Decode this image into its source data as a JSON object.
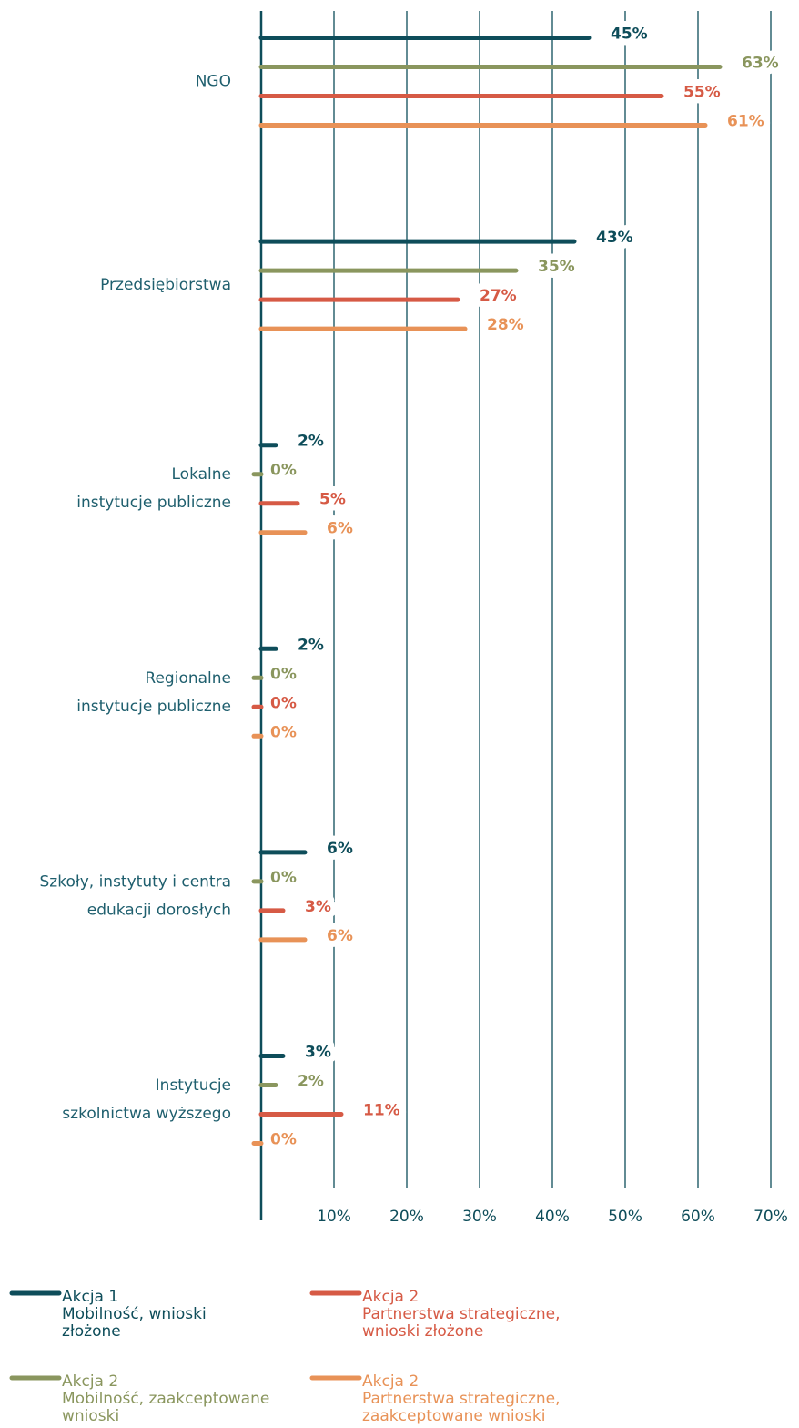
{
  "chart_data": {
    "type": "bar",
    "orientation": "horizontal",
    "categories": [
      "NGO",
      "Przedsiębiorstwa",
      "Lokalne\ninstytucje publiczne",
      "Regionalne\ninstytucje publiczne",
      "Szkoły, instytuty i centra\nedukacji dorosłych",
      "Instytucje\nszkolnictwa wyższego"
    ],
    "series": [
      {
        "name": "Akcja 1\nMobilność, wnioski\nzłożone",
        "color": "#0e4d5a",
        "values": [
          45,
          43,
          2,
          2,
          6,
          3
        ],
        "value_labels": [
          "45%",
          "43%",
          "2%",
          "2%",
          "6%",
          "3%"
        ]
      },
      {
        "name": "Akcja 2\nMobilność, zaakceptowane\nwnioski",
        "color": "#8a965e",
        "values": [
          63,
          35,
          0,
          0,
          0,
          2
        ],
        "value_labels": [
          "63%",
          "35%",
          "0%",
          "0%",
          "0%",
          "2%"
        ]
      },
      {
        "name": "Akcja 2\nPartnerstwa strategiczne,\nwnioski złożone",
        "color": "#d65a45",
        "values": [
          55,
          27,
          5,
          0,
          3,
          11
        ],
        "value_labels": [
          "55%",
          "27%",
          "5%",
          "0%",
          "3%",
          "11%"
        ]
      },
      {
        "name": "Akcja 2\nPartnerstwa strategiczne,\nzaakceptowane wnioski",
        "color": "#e89257",
        "values": [
          61,
          28,
          6,
          0,
          6,
          0
        ],
        "value_labels": [
          "61%",
          "28%",
          "6%",
          "0%",
          "6%",
          "0%"
        ]
      }
    ],
    "xlim": [
      0,
      70
    ],
    "xticks": [
      {
        "value": 10,
        "label": "10%"
      },
      {
        "value": 20,
        "label": "20%"
      },
      {
        "value": 30,
        "label": "30%"
      },
      {
        "value": 40,
        "label": "40%"
      },
      {
        "value": 50,
        "label": "50%"
      },
      {
        "value": 60,
        "label": "60%"
      },
      {
        "value": 70,
        "label": "70%"
      }
    ],
    "grid": true,
    "legend": "bottom"
  }
}
